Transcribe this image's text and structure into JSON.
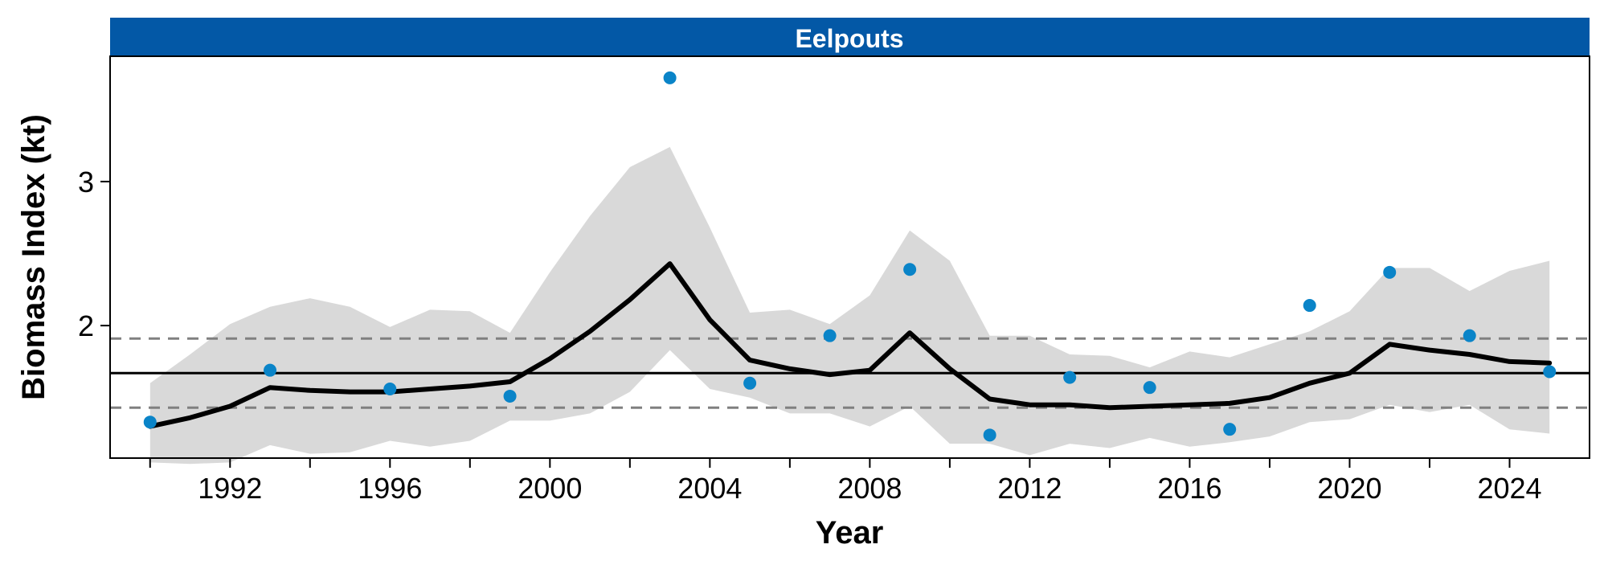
{
  "chart_data": {
    "type": "line",
    "title": "Eelpouts",
    "xlabel": "Year",
    "ylabel": "Biomass Index (kt)",
    "xlim": [
      1989,
      2026
    ],
    "ylim": [
      1.08,
      3.87
    ],
    "x_ticks": [
      1992,
      1996,
      2000,
      2004,
      2008,
      2012,
      2016,
      2020,
      2024
    ],
    "x_minor_ticks": [
      1990,
      1994,
      1998,
      2002,
      2006,
      2010,
      2014,
      2018,
      2022
    ],
    "y_ticks": [
      2,
      3
    ],
    "grid": false,
    "legend": "none",
    "colors": {
      "strip": "#0358A6",
      "points": "#0A84C8",
      "band": "#D9D9D9",
      "trend": "#000000",
      "mean": "#000000",
      "bounds": "#808080"
    },
    "reference_lines": {
      "mean": 1.67,
      "upper": 1.91,
      "lower": 1.43
    },
    "series": [
      {
        "kind": "points",
        "x": [
          1990,
          1993,
          1996,
          1999,
          2003,
          2005,
          2007,
          2009,
          2011,
          2013,
          2015,
          2017,
          2019,
          2021,
          2023,
          2025
        ],
        "y": [
          1.33,
          1.69,
          1.56,
          1.51,
          3.72,
          1.6,
          1.93,
          2.39,
          1.24,
          1.64,
          1.57,
          1.28,
          2.14,
          2.37,
          1.93,
          1.68
        ]
      },
      {
        "kind": "trend",
        "x": [
          1990,
          1991,
          1992,
          1993,
          1994,
          1995,
          1996,
          1997,
          1998,
          1999,
          2000,
          2001,
          2002,
          2003,
          2004,
          2005,
          2006,
          2007,
          2008,
          2009,
          2010,
          2011,
          2012,
          2013,
          2014,
          2015,
          2016,
          2017,
          2018,
          2019,
          2020,
          2021,
          2022,
          2023,
          2024,
          2025
        ],
        "y": [
          1.3,
          1.36,
          1.44,
          1.57,
          1.55,
          1.54,
          1.54,
          1.56,
          1.58,
          1.61,
          1.77,
          1.96,
          2.18,
          2.43,
          2.04,
          1.76,
          1.7,
          1.66,
          1.69,
          1.95,
          1.7,
          1.49,
          1.45,
          1.45,
          1.43,
          1.44,
          1.45,
          1.46,
          1.5,
          1.6,
          1.67,
          1.87,
          1.83,
          1.8,
          1.75,
          1.74
        ]
      },
      {
        "kind": "band",
        "x": [
          1990,
          1991,
          1992,
          1993,
          1994,
          1995,
          1996,
          1997,
          1998,
          1999,
          2000,
          2001,
          2002,
          2003,
          2004,
          2005,
          2006,
          2007,
          2008,
          2009,
          2010,
          2011,
          2012,
          2013,
          2014,
          2015,
          2016,
          2017,
          2018,
          2019,
          2020,
          2021,
          2022,
          2023,
          2024,
          2025
        ],
        "upper": [
          1.6,
          1.8,
          2.01,
          2.13,
          2.19,
          2.13,
          1.99,
          2.11,
          2.1,
          1.95,
          2.37,
          2.76,
          3.1,
          3.24,
          2.68,
          2.09,
          2.11,
          2.01,
          2.21,
          2.66,
          2.45,
          1.93,
          1.93,
          1.8,
          1.79,
          1.71,
          1.82,
          1.78,
          1.87,
          1.96,
          2.1,
          2.4,
          2.4,
          2.24,
          2.38,
          2.45
        ],
        "lower": [
          1.05,
          1.04,
          1.05,
          1.17,
          1.11,
          1.12,
          1.2,
          1.16,
          1.2,
          1.34,
          1.34,
          1.39,
          1.54,
          1.83,
          1.56,
          1.5,
          1.39,
          1.39,
          1.3,
          1.44,
          1.18,
          1.18,
          1.1,
          1.18,
          1.15,
          1.22,
          1.16,
          1.19,
          1.23,
          1.33,
          1.35,
          1.45,
          1.4,
          1.45,
          1.28,
          1.25
        ]
      }
    ]
  }
}
